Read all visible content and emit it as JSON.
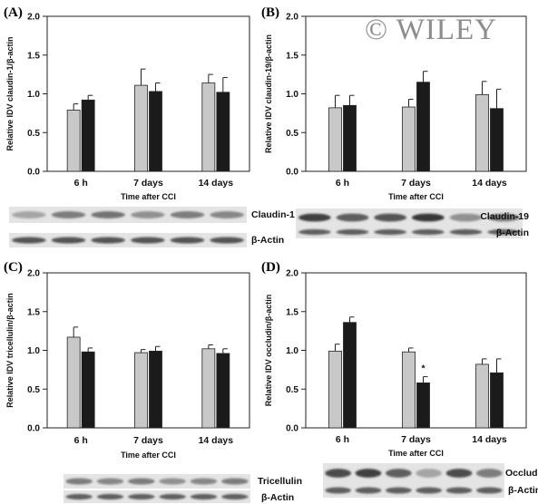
{
  "watermark": "© WILEY",
  "colors": {
    "gray_bar": "#c8c8c8",
    "black_bar": "#1b1b1b"
  },
  "chart_data": [
    {
      "type": "bar",
      "panel": "(A)",
      "ylabel": "Relative IDV claudin-1/β-actin",
      "xlabel": "Time after CCI",
      "categories": [
        "6 h",
        "7 days",
        "14 days"
      ],
      "ylim": [
        0,
        2.0
      ],
      "yticks": [
        "0.0",
        "0.5",
        "1.0",
        "1.5",
        "2.0"
      ],
      "series": [
        {
          "values": [
            0.79,
            1.11,
            1.14
          ],
          "errors": [
            0.08,
            0.21,
            0.11
          ]
        },
        {
          "values": [
            0.92,
            1.03,
            1.02
          ],
          "errors": [
            0.06,
            0.11,
            0.19
          ]
        }
      ],
      "annotations": [],
      "blot_labels": [
        "Claudin-1",
        "β-Actin"
      ]
    },
    {
      "type": "bar",
      "panel": "(B)",
      "ylabel": "Relative IDV claudin-19/β-actin",
      "xlabel": "Time after CCI",
      "categories": [
        "6 h",
        "7 days",
        "14 days"
      ],
      "ylim": [
        0,
        2.0
      ],
      "yticks": [
        "0.0",
        "0.5",
        "1.0",
        "1.5",
        "2.0"
      ],
      "series": [
        {
          "values": [
            0.82,
            0.83,
            0.99
          ],
          "errors": [
            0.16,
            0.1,
            0.17
          ]
        },
        {
          "values": [
            0.85,
            1.15,
            0.81
          ],
          "errors": [
            0.13,
            0.14,
            0.25
          ]
        }
      ],
      "annotations": [],
      "blot_labels": [
        "Claudin-19",
        "β-Actin"
      ]
    },
    {
      "type": "bar",
      "panel": "(C)",
      "ylabel": "Relative IDV tricellulin/β-actin",
      "xlabel": "Time after CCI",
      "categories": [
        "6 h",
        "7 days",
        "14 days"
      ],
      "ylim": [
        0,
        2.0
      ],
      "yticks": [
        "0.0",
        "0.5",
        "1.0",
        "1.5",
        "2.0"
      ],
      "series": [
        {
          "values": [
            1.17,
            0.97,
            1.02
          ],
          "errors": [
            0.13,
            0.04,
            0.05
          ]
        },
        {
          "values": [
            0.98,
            0.99,
            0.96
          ],
          "errors": [
            0.05,
            0.06,
            0.06
          ]
        }
      ],
      "annotations": [],
      "blot_labels": [
        "Tricellulin",
        "β-Actin"
      ]
    },
    {
      "type": "bar",
      "panel": "(D)",
      "ylabel": "Relative IDV occludin/β-actin",
      "xlabel": "Time after CCI",
      "categories": [
        "6 h",
        "7 days",
        "14 days"
      ],
      "ylim": [
        0,
        2.0
      ],
      "yticks": [
        "0.0",
        "0.5",
        "1.0",
        "1.5",
        "2.0"
      ],
      "series": [
        {
          "values": [
            0.99,
            0.98,
            0.82
          ],
          "errors": [
            0.09,
            0.05,
            0.07
          ]
        },
        {
          "values": [
            1.36,
            0.58,
            0.71
          ],
          "errors": [
            0.07,
            0.08,
            0.18
          ]
        }
      ],
      "annotations": [
        {
          "category": "7 days",
          "series": 1,
          "text": "*"
        }
      ],
      "blot_labels": [
        "Occludin",
        "β-Actin"
      ]
    }
  ]
}
